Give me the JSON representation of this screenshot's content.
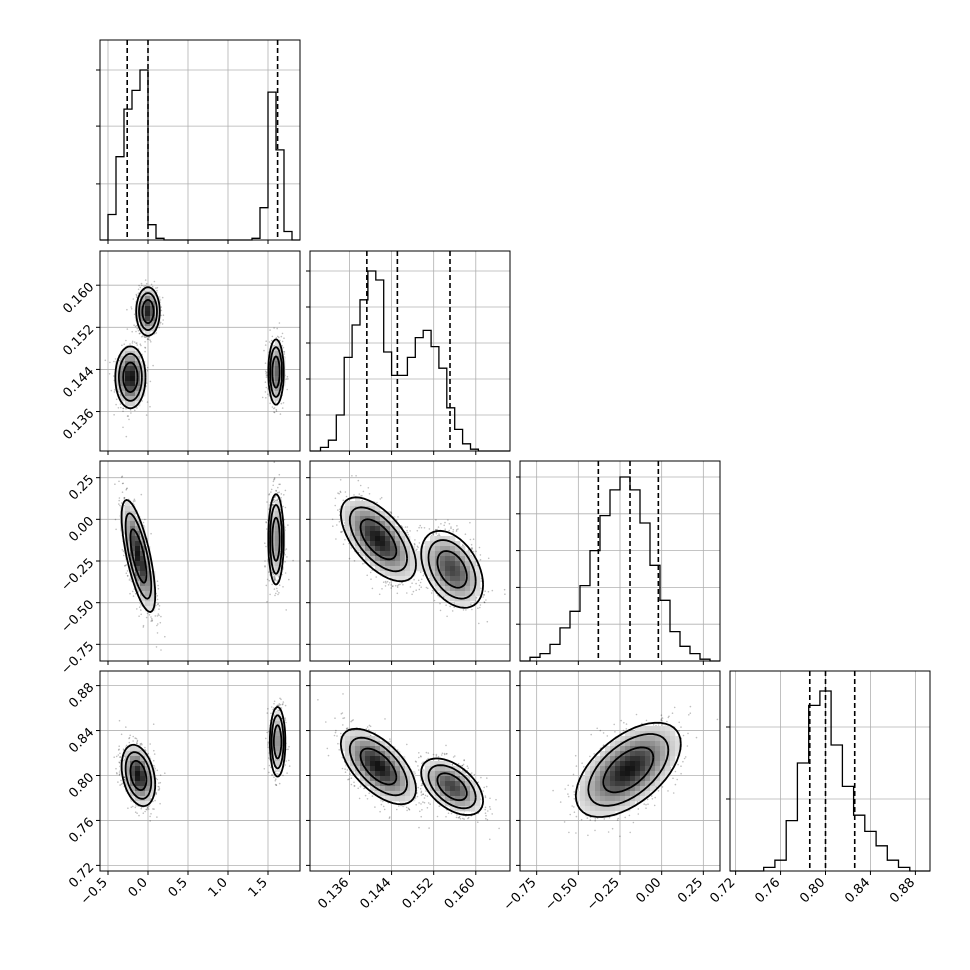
{
  "chart_data": {
    "type": "corner",
    "title": "",
    "parameters": [
      {
        "xlim": [
          -0.6,
          1.9
        ],
        "ticks": [
          -0.5,
          0.0,
          0.5,
          1.0,
          1.5
        ],
        "tick_labels": [
          "−0.5",
          "0.0",
          "0.5",
          "1.0",
          "1.5"
        ]
      },
      {
        "xlim": [
          0.1285,
          0.1665
        ],
        "ticks": [
          0.136,
          0.144,
          0.152,
          0.16
        ],
        "tick_labels": [
          "0.136",
          "0.144",
          "0.152",
          "0.160"
        ]
      },
      {
        "xlim": [
          -0.85,
          0.35
        ],
        "ticks": [
          -0.75,
          -0.5,
          -0.25,
          0.0,
          0.25
        ],
        "tick_labels": [
          "−0.75",
          "−0.50",
          "−0.25",
          "0.00",
          "0.25"
        ]
      },
      {
        "xlim": [
          0.715,
          0.893
        ],
        "ticks": [
          0.72,
          0.76,
          0.8,
          0.84,
          0.88
        ],
        "tick_labels": [
          "0.72",
          "0.76",
          "0.80",
          "0.84",
          "0.88"
        ]
      }
    ],
    "histograms": [
      {
        "edges": [
          -0.6,
          -0.5,
          -0.4,
          -0.3,
          -0.2,
          -0.1,
          0.0,
          0.1,
          0.2,
          0.3,
          1.3,
          1.4,
          1.5,
          1.6,
          1.7,
          1.8,
          1.9
        ],
        "counts": [
          0,
          0.15,
          0.49,
          0.77,
          0.88,
          1.0,
          0.09,
          0.01,
          0,
          0,
          0.01,
          0.19,
          0.87,
          0.53,
          0.05,
          0
        ],
        "quantiles": [
          -0.26,
          0.0,
          1.62
        ]
      },
      {
        "edges": [
          0.1285,
          0.1305,
          0.132,
          0.1335,
          0.135,
          0.1365,
          0.138,
          0.1395,
          0.141,
          0.1425,
          0.144,
          0.1455,
          0.147,
          0.1485,
          0.15,
          0.1515,
          0.153,
          0.1545,
          0.156,
          0.1575,
          0.159,
          0.1605,
          0.162,
          0.1635,
          0.1665
        ],
        "counts": [
          0,
          0.02,
          0.06,
          0.2,
          0.52,
          0.7,
          0.84,
          1.0,
          0.95,
          0.55,
          0.42,
          0.42,
          0.52,
          0.63,
          0.67,
          0.58,
          0.46,
          0.24,
          0.12,
          0.04,
          0.01,
          0,
          0,
          0
        ],
        "quantiles": [
          0.1393,
          0.1451,
          0.1551
        ]
      },
      {
        "edges": [
          -0.85,
          -0.79,
          -0.73,
          -0.67,
          -0.61,
          -0.55,
          -0.49,
          -0.43,
          -0.37,
          -0.31,
          -0.25,
          -0.19,
          -0.13,
          -0.07,
          -0.01,
          0.05,
          0.11,
          0.17,
          0.23,
          0.29,
          0.35
        ],
        "counts": [
          0,
          0.02,
          0.04,
          0.09,
          0.18,
          0.27,
          0.41,
          0.6,
          0.79,
          0.93,
          1.0,
          0.93,
          0.75,
          0.52,
          0.33,
          0.16,
          0.08,
          0.04,
          0.01,
          0
        ],
        "quantiles": [
          -0.38,
          -0.19,
          -0.02
        ]
      },
      {
        "edges": [
          0.715,
          0.745,
          0.755,
          0.765,
          0.775,
          0.785,
          0.795,
          0.805,
          0.815,
          0.825,
          0.835,
          0.845,
          0.855,
          0.865,
          0.875,
          0.893
        ],
        "counts": [
          0,
          0.02,
          0.06,
          0.28,
          0.6,
          0.92,
          1.0,
          0.7,
          0.47,
          0.31,
          0.22,
          0.14,
          0.06,
          0.02,
          0
        ],
        "quantiles": [
          0.786,
          0.8,
          0.826
        ]
      }
    ],
    "hist_yticks": [
      [
        0.33,
        0.67,
        1.0
      ],
      [
        0.2,
        0.4,
        0.6,
        0.8,
        1.0
      ],
      [
        0.2,
        0.4,
        0.6,
        0.8,
        1.0
      ],
      [
        0.4,
        0.8
      ]
    ],
    "joint_modes": {
      "1-0": [
        {
          "cx": -0.22,
          "cy": 0.1425,
          "sx": 0.09,
          "sy": 0.0028,
          "r": 0,
          "w": 0.6
        },
        {
          "cx": 0.0,
          "cy": 0.155,
          "sx": 0.07,
          "sy": 0.0022,
          "r": 0,
          "w": 0.55
        },
        {
          "cx": 1.6,
          "cy": 0.1435,
          "sx": 0.05,
          "sy": 0.0032,
          "r": 0,
          "w": 0.4
        }
      ],
      "2-0": [
        {
          "cx": -0.12,
          "cy": -0.22,
          "sx": 0.1,
          "sy": 0.16,
          "r": -0.7,
          "w": 1.0
        },
        {
          "cx": 1.6,
          "cy": -0.12,
          "sx": 0.05,
          "sy": 0.14,
          "r": 0,
          "w": 0.5
        }
      ],
      "3-0": [
        {
          "cx": -0.12,
          "cy": 0.8,
          "sx": 0.1,
          "sy": 0.013,
          "r": -0.3,
          "w": 1.0
        },
        {
          "cx": 1.62,
          "cy": 0.83,
          "sx": 0.05,
          "sy": 0.016,
          "r": 0,
          "w": 0.45
        }
      ],
      "2-1": [
        {
          "cx": 0.1415,
          "cy": -0.12,
          "sx": 0.0034,
          "sy": 0.12,
          "r": -0.6,
          "w": 1.0
        },
        {
          "cx": 0.1555,
          "cy": -0.3,
          "sx": 0.0028,
          "sy": 0.11,
          "r": -0.4,
          "w": 0.8
        }
      ],
      "3-1": [
        {
          "cx": 0.1415,
          "cy": 0.808,
          "sx": 0.0034,
          "sy": 0.016,
          "r": -0.6,
          "w": 1.0
        },
        {
          "cx": 0.1555,
          "cy": 0.79,
          "sx": 0.0028,
          "sy": 0.012,
          "r": -0.5,
          "w": 0.8
        }
      ],
      "3-2": [
        {
          "cx": -0.2,
          "cy": 0.805,
          "sx": 0.15,
          "sy": 0.02,
          "r": 0.55,
          "w": 1.0
        }
      ]
    }
  }
}
